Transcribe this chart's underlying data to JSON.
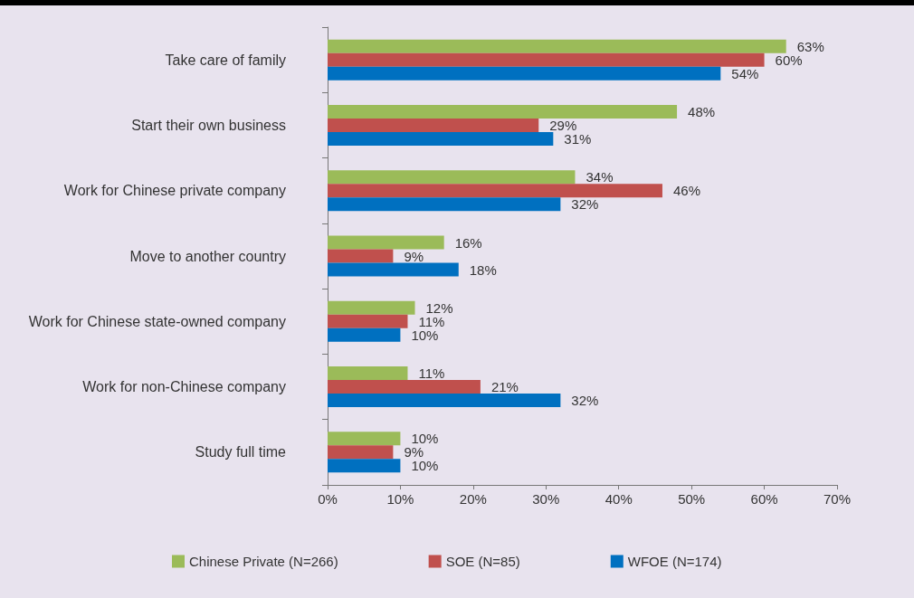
{
  "chart_data": {
    "type": "bar",
    "orientation": "horizontal",
    "categories": [
      "Take care of family",
      "Start their own business",
      "Work for Chinese private company",
      "Move to another country",
      "Work for Chinese state-owned company",
      "Work for non-Chinese company",
      "Study full time"
    ],
    "series": [
      {
        "name": "Chinese Private (N=266)",
        "color": "#9bbb59",
        "values": [
          63,
          48,
          34,
          16,
          12,
          11,
          10
        ],
        "value_labels": [
          "63%",
          "48%",
          "34%",
          "16%",
          "12%",
          "11%",
          "10%"
        ]
      },
      {
        "name": "SOE (N=85)",
        "color": "#c0504d",
        "values": [
          60,
          29,
          46,
          9,
          11,
          21,
          9
        ],
        "value_labels": [
          "60%",
          "29%",
          "46%",
          "9%",
          "11%",
          "21%",
          "9%"
        ]
      },
      {
        "name": "WFOE (N=174)",
        "color": "#0070c0",
        "values": [
          54,
          31,
          32,
          18,
          10,
          32,
          10
        ],
        "value_labels": [
          "54%",
          "31%",
          "32%",
          "18%",
          "10%",
          "32%",
          "10%"
        ]
      }
    ],
    "xlim": [
      0,
      70
    ],
    "xticks": [
      {
        "value": 0,
        "label": "0%"
      },
      {
        "value": 10,
        "label": "10%"
      },
      {
        "value": 20,
        "label": "20%"
      },
      {
        "value": 30,
        "label": "30%"
      },
      {
        "value": 40,
        "label": "40%"
      },
      {
        "value": 50,
        "label": "50%"
      },
      {
        "value": 60,
        "label": "60%"
      },
      {
        "value": 70,
        "label": "70%"
      }
    ],
    "grid": false,
    "legend": "bottom"
  }
}
